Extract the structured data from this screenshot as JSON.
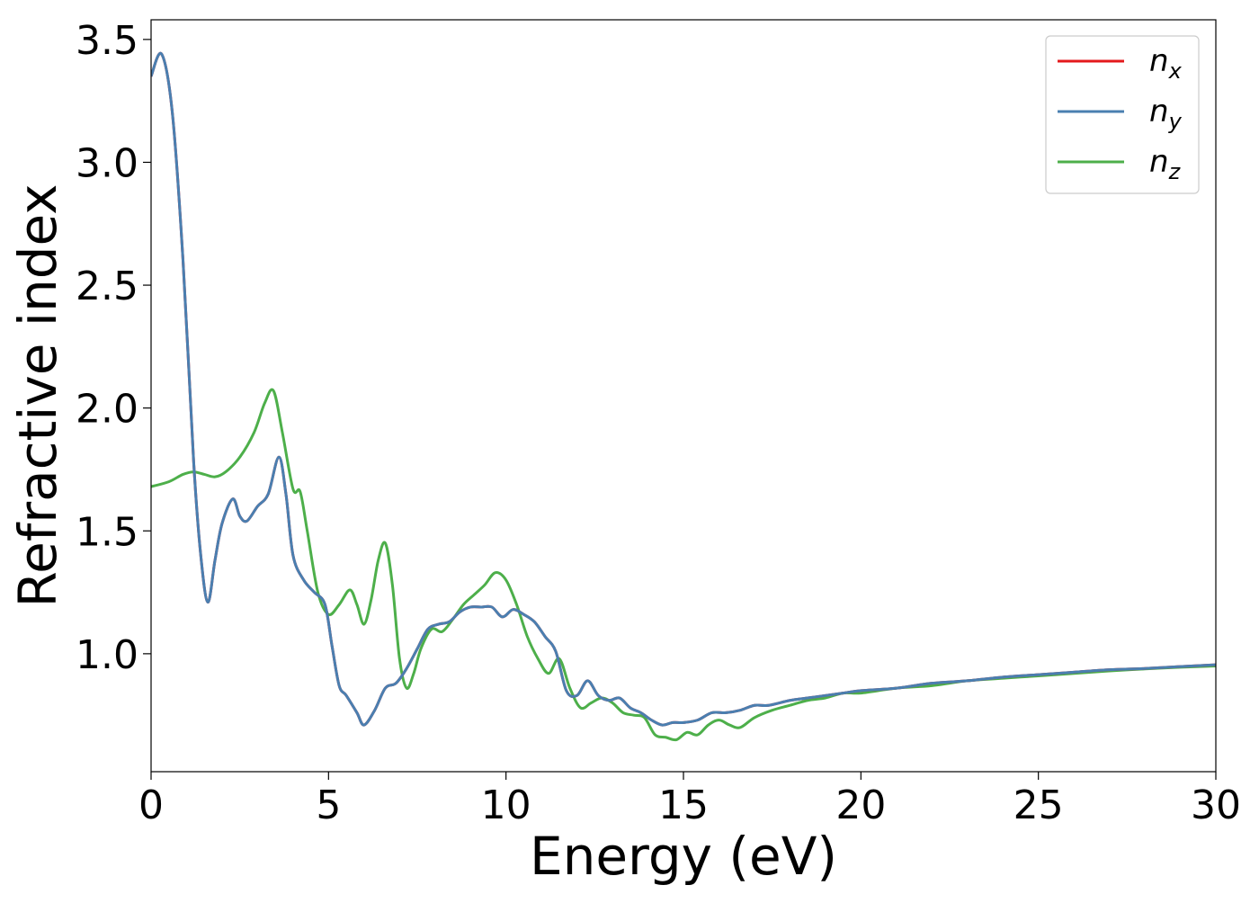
{
  "chart_data": {
    "type": "line",
    "xlabel": "Energy (eV)",
    "ylabel": "Refractive index",
    "xlim": [
      0,
      30
    ],
    "ylim": [
      0.52,
      3.58
    ],
    "xticks": [
      0,
      5,
      10,
      15,
      20,
      25,
      30
    ],
    "xtick_labels": [
      "0",
      "5",
      "10",
      "15",
      "20",
      "25",
      "30"
    ],
    "yticks": [
      1.0,
      1.5,
      2.0,
      2.5,
      3.0,
      3.5
    ],
    "ytick_labels": [
      "1.0",
      "1.5",
      "2.0",
      "2.5",
      "3.0",
      "3.5"
    ],
    "grid": false,
    "legend_position": "top-right",
    "series": [
      {
        "name": "n_x",
        "label_base": "n",
        "label_sub": "x",
        "color": "#e41a1c",
        "x": [
          0,
          0.3,
          0.6,
          0.9,
          1.2,
          1.4,
          1.6,
          1.8,
          2.0,
          2.3,
          2.5,
          2.7,
          3.0,
          3.3,
          3.6,
          3.8,
          4.0,
          4.3,
          4.6,
          4.9,
          5.1,
          5.3,
          5.5,
          5.8,
          6.0,
          6.3,
          6.6,
          6.9,
          7.2,
          7.5,
          7.8,
          8.1,
          8.4,
          8.7,
          9.0,
          9.3,
          9.6,
          9.9,
          10.2,
          10.5,
          10.8,
          11.1,
          11.4,
          11.7,
          12.0,
          12.3,
          12.6,
          12.9,
          13.2,
          13.5,
          13.8,
          14.1,
          14.4,
          14.7,
          15.0,
          15.4,
          15.8,
          16.2,
          16.6,
          17.0,
          17.4,
          18.0,
          18.5,
          19.0,
          19.5,
          20.0,
          21.0,
          22.0,
          23.0,
          24.0,
          25.0,
          26.0,
          27.0,
          28.0,
          29.0,
          30.0
        ],
        "y": [
          3.35,
          3.44,
          3.2,
          2.6,
          1.78,
          1.4,
          1.21,
          1.38,
          1.53,
          1.63,
          1.56,
          1.54,
          1.6,
          1.65,
          1.8,
          1.65,
          1.4,
          1.3,
          1.25,
          1.2,
          1.03,
          0.87,
          0.83,
          0.76,
          0.71,
          0.77,
          0.86,
          0.88,
          0.94,
          1.02,
          1.1,
          1.12,
          1.13,
          1.17,
          1.19,
          1.19,
          1.19,
          1.15,
          1.18,
          1.16,
          1.13,
          1.07,
          1.01,
          0.85,
          0.83,
          0.89,
          0.83,
          0.81,
          0.82,
          0.78,
          0.76,
          0.73,
          0.71,
          0.72,
          0.72,
          0.73,
          0.76,
          0.76,
          0.77,
          0.79,
          0.79,
          0.81,
          0.82,
          0.83,
          0.84,
          0.85,
          0.86,
          0.88,
          0.89,
          0.905,
          0.915,
          0.925,
          0.935,
          0.94,
          0.948,
          0.955
        ]
      },
      {
        "name": "n_y",
        "label_base": "n",
        "label_sub": "y",
        "color": "#4a7fb0",
        "x": [
          0,
          0.3,
          0.6,
          0.9,
          1.2,
          1.4,
          1.6,
          1.8,
          2.0,
          2.3,
          2.5,
          2.7,
          3.0,
          3.3,
          3.6,
          3.8,
          4.0,
          4.3,
          4.6,
          4.9,
          5.1,
          5.3,
          5.5,
          5.8,
          6.0,
          6.3,
          6.6,
          6.9,
          7.2,
          7.5,
          7.8,
          8.1,
          8.4,
          8.7,
          9.0,
          9.3,
          9.6,
          9.9,
          10.2,
          10.5,
          10.8,
          11.1,
          11.4,
          11.7,
          12.0,
          12.3,
          12.6,
          12.9,
          13.2,
          13.5,
          13.8,
          14.1,
          14.4,
          14.7,
          15.0,
          15.4,
          15.8,
          16.2,
          16.6,
          17.0,
          17.4,
          18.0,
          18.5,
          19.0,
          19.5,
          20.0,
          21.0,
          22.0,
          23.0,
          24.0,
          25.0,
          26.0,
          27.0,
          28.0,
          29.0,
          30.0
        ],
        "y": [
          3.35,
          3.44,
          3.2,
          2.6,
          1.78,
          1.4,
          1.21,
          1.38,
          1.53,
          1.63,
          1.56,
          1.54,
          1.6,
          1.65,
          1.8,
          1.65,
          1.4,
          1.3,
          1.25,
          1.2,
          1.03,
          0.87,
          0.83,
          0.76,
          0.71,
          0.77,
          0.86,
          0.88,
          0.94,
          1.02,
          1.1,
          1.12,
          1.13,
          1.17,
          1.19,
          1.19,
          1.19,
          1.15,
          1.18,
          1.16,
          1.13,
          1.07,
          1.01,
          0.85,
          0.83,
          0.89,
          0.83,
          0.81,
          0.82,
          0.78,
          0.76,
          0.73,
          0.71,
          0.72,
          0.72,
          0.73,
          0.76,
          0.76,
          0.77,
          0.79,
          0.79,
          0.81,
          0.82,
          0.83,
          0.84,
          0.85,
          0.86,
          0.88,
          0.89,
          0.905,
          0.915,
          0.925,
          0.935,
          0.94,
          0.948,
          0.955
        ]
      },
      {
        "name": "n_z",
        "label_base": "n",
        "label_sub": "z",
        "color": "#4daf4a",
        "x": [
          0,
          0.5,
          0.9,
          1.2,
          1.5,
          1.8,
          2.1,
          2.5,
          2.9,
          3.2,
          3.45,
          3.7,
          4.0,
          4.2,
          4.4,
          4.7,
          5.0,
          5.3,
          5.6,
          5.8,
          6.0,
          6.2,
          6.4,
          6.6,
          6.8,
          7.0,
          7.2,
          7.4,
          7.6,
          7.9,
          8.2,
          8.5,
          8.8,
          9.1,
          9.4,
          9.7,
          10.0,
          10.3,
          10.6,
          10.9,
          11.2,
          11.5,
          11.8,
          12.1,
          12.4,
          12.7,
          13.0,
          13.3,
          13.6,
          13.9,
          14.2,
          14.5,
          14.8,
          15.1,
          15.4,
          15.7,
          16.0,
          16.3,
          16.6,
          17.0,
          17.5,
          18.0,
          18.5,
          19.0,
          19.5,
          20.0,
          21.0,
          22.0,
          23.0,
          24.0,
          25.0,
          26.0,
          27.0,
          28.0,
          29.0,
          30.0
        ],
        "y": [
          1.68,
          1.7,
          1.73,
          1.74,
          1.73,
          1.72,
          1.74,
          1.8,
          1.9,
          2.02,
          2.07,
          1.9,
          1.67,
          1.66,
          1.5,
          1.25,
          1.16,
          1.2,
          1.26,
          1.2,
          1.12,
          1.22,
          1.38,
          1.45,
          1.28,
          0.98,
          0.86,
          0.92,
          1.02,
          1.1,
          1.09,
          1.14,
          1.2,
          1.24,
          1.28,
          1.33,
          1.3,
          1.2,
          1.07,
          0.98,
          0.92,
          0.98,
          0.86,
          0.78,
          0.8,
          0.82,
          0.8,
          0.76,
          0.75,
          0.74,
          0.67,
          0.66,
          0.65,
          0.68,
          0.67,
          0.71,
          0.73,
          0.71,
          0.7,
          0.74,
          0.77,
          0.79,
          0.81,
          0.82,
          0.84,
          0.84,
          0.86,
          0.87,
          0.89,
          0.9,
          0.91,
          0.92,
          0.93,
          0.938,
          0.945,
          0.95
        ]
      }
    ]
  }
}
